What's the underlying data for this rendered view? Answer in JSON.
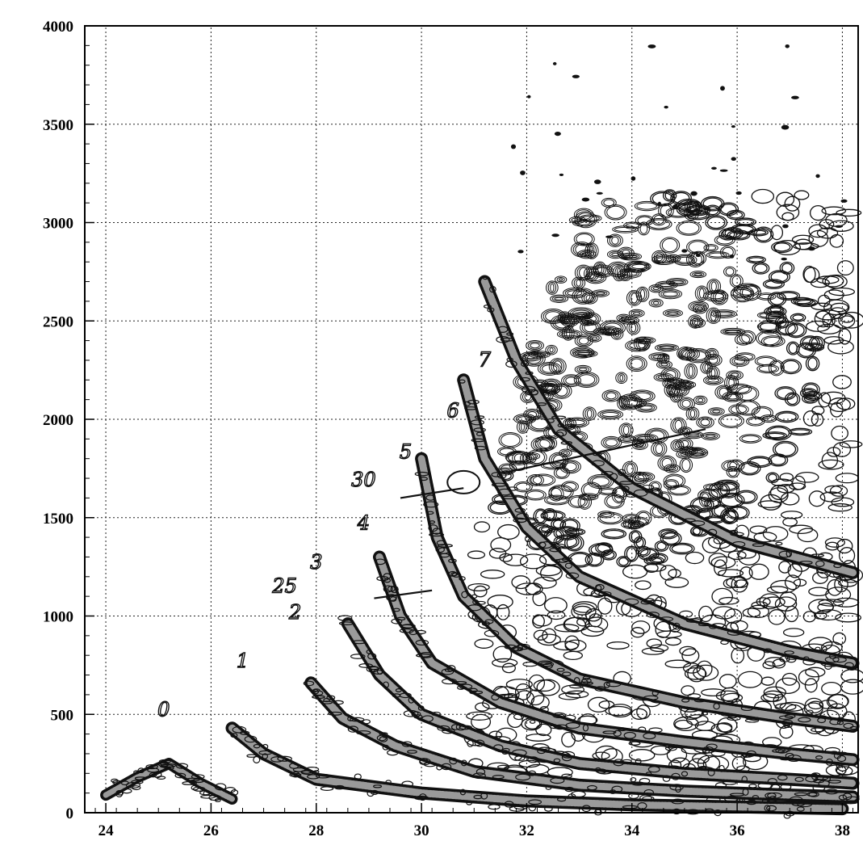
{
  "chart_data": {
    "type": "heatmap",
    "title": "",
    "xlabel": "",
    "ylabel": "",
    "xlim": [
      23.6,
      38.3
    ],
    "ylim": [
      0,
      4000
    ],
    "x_ticks": [
      "24",
      "26",
      "28",
      "30",
      "32",
      "34",
      "36",
      "38"
    ],
    "y_ticks": [
      "0",
      "500",
      "1000",
      "1500",
      "2000",
      "2500",
      "3000",
      "3500",
      "4000"
    ],
    "grid": true,
    "bands": [
      {
        "label": "0",
        "x": [
          24.0,
          24.6,
          25.2,
          25.8,
          26.4
        ],
        "y": [
          90,
          180,
          250,
          150,
          70
        ]
      },
      {
        "label": "1",
        "x": [
          26.4,
          27.0,
          28.0,
          30.0,
          32.0,
          34.0,
          36.0,
          38.0
        ],
        "y": [
          430,
          300,
          170,
          100,
          60,
          40,
          30,
          20
        ]
      },
      {
        "label": "2",
        "x": [
          27.9,
          28.5,
          29.5,
          31.0,
          33.0,
          35.0,
          37.0,
          38.2
        ],
        "y": [
          660,
          480,
          340,
          210,
          140,
          110,
          90,
          80
        ]
      },
      {
        "label": "3",
        "x": [
          28.6,
          29.2,
          30.0,
          31.5,
          33.0,
          35.0,
          37.0,
          38.2
        ],
        "y": [
          960,
          700,
          500,
          340,
          250,
          200,
          170,
          150
        ]
      },
      {
        "label": "4",
        "x": [
          29.2,
          29.6,
          30.2,
          31.5,
          33.0,
          35.0,
          37.0,
          38.2
        ],
        "y": [
          1300,
          1000,
          760,
          560,
          430,
          360,
          300,
          270
        ]
      },
      {
        "label": "5",
        "x": [
          30.0,
          30.3,
          30.8,
          31.8,
          33.0,
          35.0,
          37.0,
          38.2
        ],
        "y": [
          1800,
          1400,
          1100,
          840,
          680,
          560,
          480,
          440
        ]
      },
      {
        "label": "6",
        "x": [
          30.8,
          31.2,
          32.0,
          33.0,
          35.0,
          37.0,
          38.2
        ],
        "y": [
          2200,
          1800,
          1450,
          1200,
          960,
          820,
          760
        ]
      },
      {
        "label": "7",
        "x": [
          31.2,
          31.8,
          32.6,
          34.0,
          36.0,
          38.2
        ],
        "y": [
          2700,
          2300,
          1950,
          1650,
          1380,
          1220
        ]
      }
    ],
    "dense_region": {
      "x": [
        31.0,
        38.2
      ],
      "y": [
        200,
        3150
      ],
      "center": [
        33.8,
        2300
      ]
    },
    "handwritten_labels": [
      {
        "text": "0",
        "x": 25.1,
        "y": 490
      },
      {
        "text": "1",
        "x": 26.6,
        "y": 740
      },
      {
        "text": "2",
        "x": 27.6,
        "y": 985
      },
      {
        "text": "25",
        "x": 27.4,
        "y": 1120
      },
      {
        "text": "3",
        "x": 28.0,
        "y": 1240
      },
      {
        "text": "4",
        "x": 28.9,
        "y": 1440
      },
      {
        "text": "30",
        "x": 28.9,
        "y": 1660
      },
      {
        "text": "5",
        "x": 29.7,
        "y": 1800
      },
      {
        "text": "6",
        "x": 30.6,
        "y": 2010
      },
      {
        "text": "7",
        "x": 31.2,
        "y": 2270
      }
    ],
    "annotation_lines": [
      {
        "x": [
          29.1,
          30.2
        ],
        "y": [
          1090,
          1130
        ]
      },
      {
        "x": [
          29.6,
          30.8
        ],
        "y": [
          1600,
          1650
        ]
      },
      {
        "x": [
          31.6,
          35.4
        ],
        "y": [
          1730,
          1950
        ]
      }
    ]
  }
}
